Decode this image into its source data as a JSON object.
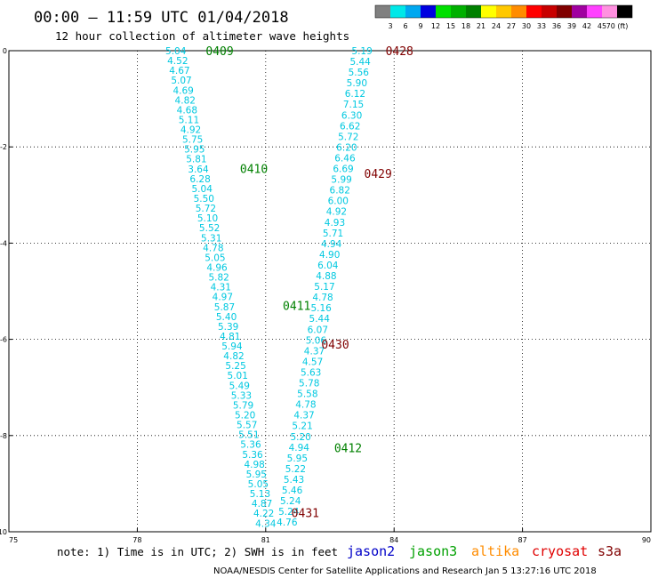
{
  "header": {
    "title": "00:00 – 11:59 UTC 01/04/2018",
    "subtitle": "12 hour collection of altimeter wave heights"
  },
  "color_scale": {
    "labels": [
      "3",
      "6",
      "9",
      "12",
      "15",
      "18",
      "21",
      "24",
      "27",
      "30",
      "33",
      "36",
      "39",
      "42",
      "45",
      "70 (ft)"
    ],
    "colors": [
      "#808080",
      "#00e8e8",
      "#00a8f0",
      "#0000e0",
      "#00e000",
      "#00b000",
      "#008000",
      "#ffff00",
      "#ffc800",
      "#ff8c00",
      "#ff0000",
      "#c80000",
      "#800000",
      "#a000a0",
      "#ff40ff",
      "#ff90e0",
      "#000000"
    ]
  },
  "footer": {
    "note": "note: 1) Time is in UTC; 2) SWH is in feet",
    "legend": [
      {
        "label": "jason2",
        "color": "#0000c8"
      },
      {
        "label": "jason3",
        "color": "#00a000"
      },
      {
        "label": "altika",
        "color": "#ff8c00"
      },
      {
        "label": "cryosat",
        "color": "#e00000"
      },
      {
        "label": "s3a",
        "color": "#800000"
      }
    ],
    "credit": "NOAA/NESDIS Center for Satellite Applications and Research    Jan  5 13:27:16 UTC 2018"
  },
  "chart_data": {
    "type": "scatter",
    "xlim": [
      75,
      90
    ],
    "ylim": [
      -10,
      0
    ],
    "x_ticks": [
      "75",
      "78",
      "81",
      "84",
      "87",
      "90"
    ],
    "x_tick_values": [
      75,
      78,
      81,
      84,
      87,
      90
    ],
    "y_ticks": [
      "0",
      "-2",
      "-4",
      "-6",
      "-8",
      "-10"
    ],
    "y_tick_values": [
      0,
      -2,
      -4,
      -6,
      -8,
      -10
    ],
    "grid": true,
    "time_labels": [
      {
        "text": "0409",
        "x": 79.6,
        "y": 0.0,
        "color": "#008000"
      },
      {
        "text": "0410",
        "x": 80.4,
        "y": -2.45,
        "color": "#008000"
      },
      {
        "text": "0411",
        "x": 81.4,
        "y": -5.3,
        "color": "#008000"
      },
      {
        "text": "0412",
        "x": 82.6,
        "y": -8.25,
        "color": "#008000"
      },
      {
        "text": "0428",
        "x": 83.8,
        "y": 0.0,
        "color": "#800000"
      },
      {
        "text": "0429",
        "x": 83.3,
        "y": -2.55,
        "color": "#800000"
      },
      {
        "text": "0430",
        "x": 82.3,
        "y": -6.1,
        "color": "#800000"
      },
      {
        "text": "0431",
        "x": 81.6,
        "y": -9.6,
        "color": "#800000"
      }
    ],
    "tracks": [
      {
        "x_start": 78.9,
        "y_start": 0.0,
        "x_end": 81.0,
        "y_end": -9.82,
        "values": [
          "5.04",
          "4.52",
          "4.67",
          "5.07",
          "4.69",
          "4.82",
          "4.68",
          "5.11",
          "4.92",
          "5.75",
          "5.95",
          "5.81",
          "3.64",
          "6.28",
          "5.04",
          "5.50",
          "5.72",
          "5.10",
          "5.52",
          "5.31",
          "4.78",
          "5.05",
          "4.96",
          "5.82",
          "4.31",
          "4.97",
          "5.87",
          "5.40",
          "5.39",
          "4.81",
          "5.94",
          "4.82",
          "5.25",
          "5.01",
          "5.49",
          "5.33",
          "5.79",
          "5.20",
          "5.57",
          "5.51",
          "5.36",
          "5.36",
          "4.98",
          "5.95",
          "5.05",
          "5.13",
          "4.87",
          "4.22",
          "4.34"
        ]
      },
      {
        "x_start": 83.25,
        "y_start": 0.0,
        "x_end": 81.5,
        "y_end": -9.8,
        "values": [
          "5.19",
          "5.44",
          "5.56",
          "5.90",
          "6.12",
          "7.15",
          "6.30",
          "6.62",
          "5.72",
          "6.20",
          "6.46",
          "6.69",
          "5.99",
          "6.82",
          "6.00",
          "4.92",
          "4.93",
          "5.71",
          "4.94",
          "4.90",
          "6.04",
          "4.88",
          "5.17",
          "4.78",
          "5.16",
          "5.44",
          "6.07",
          "5.06",
          "4.37",
          "4.57",
          "5.63",
          "5.78",
          "5.58",
          "4.78",
          "4.37",
          "5.21",
          "5.20",
          "4.94",
          "5.95",
          "5.22",
          "5.43",
          "5.46",
          "5.24",
          "5.24",
          "4.76"
        ]
      }
    ]
  }
}
